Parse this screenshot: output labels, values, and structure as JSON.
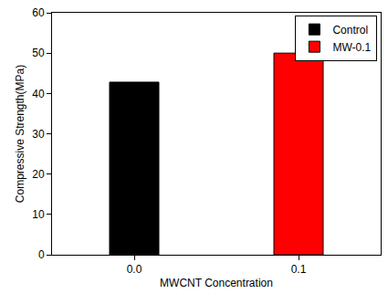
{
  "chart_data": {
    "type": "bar",
    "x_label": "MWCNT Concentration",
    "y_label": "Compressive Strength(MPa)",
    "categories": [
      "0.0",
      "0.1"
    ],
    "series": [
      {
        "name": "Control",
        "color": "#000000",
        "values": [
          42.8,
          null
        ]
      },
      {
        "name": "MW-0.1",
        "color": "#ff0000",
        "values": [
          null,
          50.0
        ]
      }
    ],
    "ylim": [
      0,
      60
    ],
    "yticks": [
      0,
      10,
      20,
      30,
      40,
      50,
      60
    ],
    "grid": false,
    "legend": "top right"
  }
}
